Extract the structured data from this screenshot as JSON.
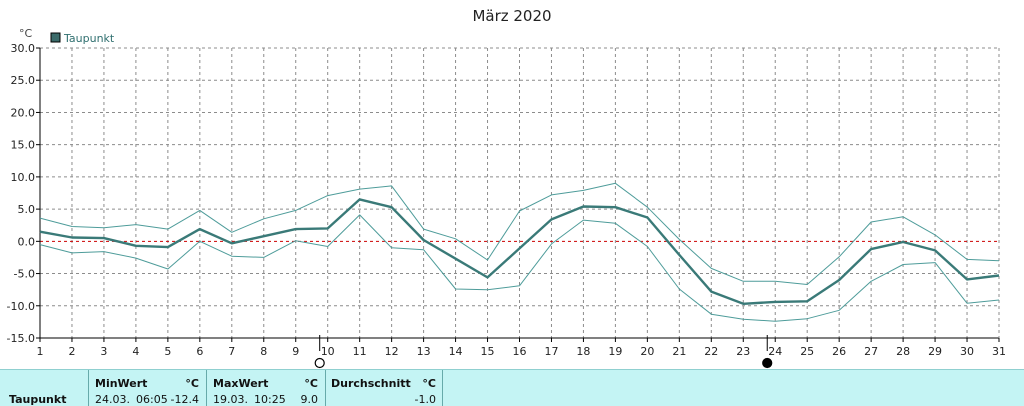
{
  "chart_data": {
    "type": "line",
    "title": "März 2020",
    "ylabel": "°C",
    "ylim": [
      -15,
      30
    ],
    "yticks": [
      "30.0",
      "25.0",
      "20.0",
      "15.0",
      "10.0",
      "5.0",
      "0.0",
      "-5.0",
      "-10.0",
      "-15.0"
    ],
    "xlim": [
      1,
      31
    ],
    "x": [
      1,
      2,
      3,
      4,
      5,
      6,
      7,
      8,
      9,
      10,
      11,
      12,
      13,
      14,
      15,
      16,
      17,
      18,
      19,
      20,
      21,
      22,
      23,
      24,
      25,
      26,
      27,
      28,
      29,
      30,
      31
    ],
    "legend": "Taupunkt",
    "series": [
      {
        "name": "Taupunkt",
        "role": "average",
        "values": [
          1.5,
          0.6,
          0.5,
          -0.7,
          -0.9,
          1.9,
          -0.3,
          0.8,
          1.9,
          2.0,
          6.5,
          5.3,
          0.2,
          -2.7,
          -5.6,
          -1.1,
          3.4,
          5.4,
          5.3,
          3.7,
          -2.1,
          -7.8,
          -9.7,
          -9.4,
          -9.3,
          -6.0,
          -1.2,
          -0.1,
          -1.4,
          -5.9,
          -5.3
        ]
      },
      {
        "role": "maximum",
        "values": [
          3.6,
          2.3,
          2.1,
          2.6,
          1.9,
          4.8,
          1.4,
          3.5,
          4.8,
          7.1,
          8.1,
          8.6,
          1.9,
          0.4,
          -2.9,
          4.7,
          7.2,
          7.9,
          9.0,
          5.3,
          0.3,
          -4.2,
          -6.2,
          -6.2,
          -6.7,
          -2.4,
          3.0,
          3.8,
          1.0,
          -2.8,
          -3.0
        ]
      },
      {
        "role": "minimum",
        "values": [
          -0.5,
          -1.8,
          -1.6,
          -2.6,
          -4.3,
          0.0,
          -2.3,
          -2.5,
          0.1,
          -0.8,
          4.1,
          -1.0,
          -1.3,
          -7.4,
          -7.5,
          -6.9,
          -0.4,
          3.3,
          2.8,
          -0.8,
          -7.4,
          -11.3,
          -12.1,
          -12.4,
          -12.0,
          -10.7,
          -6.2,
          -3.6,
          -3.3,
          -9.6,
          -9.1
        ]
      }
    ],
    "reference_line": 0,
    "moon_phases": [
      {
        "x": 10,
        "phase": "full-moon"
      },
      {
        "x": 24,
        "phase": "new-moon"
      }
    ],
    "grid": true,
    "colors": {
      "average": "#3a7a78",
      "extremes": "#4e9c9a",
      "zero_line": "#cc0000",
      "legend_swatch": "#3b6b6a"
    }
  },
  "stats": {
    "row_label": "Taupunkt",
    "min": {
      "header": "MinWert",
      "unit": "°C",
      "date": "24.03.",
      "time": "06:05",
      "value": "-12.4"
    },
    "max": {
      "header": "MaxWert",
      "unit": "°C",
      "date": "19.03.",
      "time": "10:25",
      "value": "9.0"
    },
    "avg": {
      "header": "Durchschnitt",
      "unit": "°C",
      "value": "-1.0"
    }
  }
}
